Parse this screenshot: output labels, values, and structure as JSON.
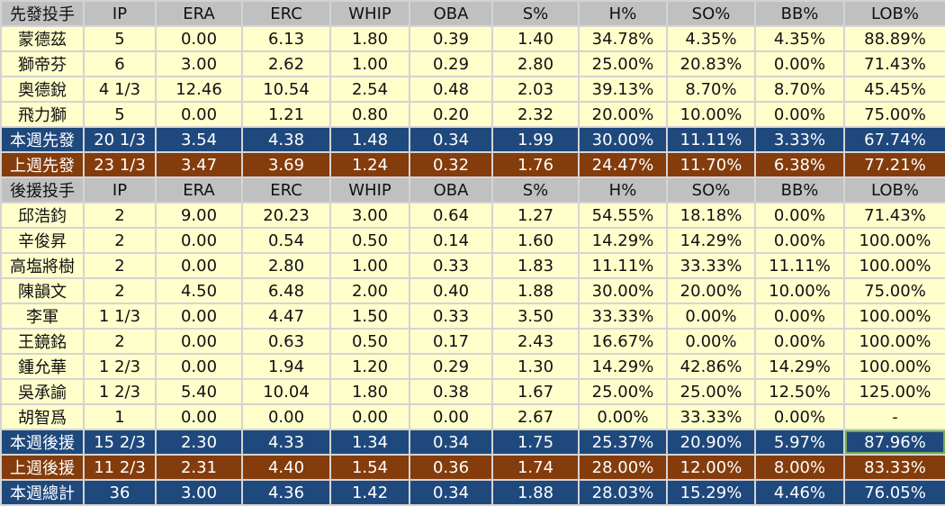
{
  "colors": {
    "header": "#c0c0c0",
    "row": "#ffffcc",
    "this_week": "#1f497d",
    "last_week": "#843c0c",
    "selection": "#70ad47"
  },
  "columns": [
    "IP",
    "ERA",
    "ERC",
    "WHIP",
    "OBA",
    "S%",
    "H%",
    "SO%",
    "BB%",
    "LOB%"
  ],
  "sections": [
    {
      "header": "先發投手",
      "rows": [
        [
          "蒙德茲",
          "5",
          "0.00",
          "6.13",
          "1.80",
          "0.39",
          "1.40",
          "34.78%",
          "4.35%",
          "4.35%",
          "88.89%"
        ],
        [
          "獅帝芬",
          "6",
          "3.00",
          "2.62",
          "1.00",
          "0.29",
          "2.80",
          "25.00%",
          "20.83%",
          "0.00%",
          "71.43%"
        ],
        [
          "奧德銳",
          "4 1/3",
          "12.46",
          "10.54",
          "2.54",
          "0.48",
          "2.03",
          "39.13%",
          "8.70%",
          "8.70%",
          "45.45%"
        ],
        [
          "飛力獅",
          "5",
          "0.00",
          "1.21",
          "0.80",
          "0.20",
          "2.32",
          "20.00%",
          "10.00%",
          "0.00%",
          "75.00%"
        ]
      ],
      "totals": [
        {
          "type": "blue",
          "cells": [
            "本週先發",
            "20 1/3",
            "3.54",
            "4.38",
            "1.48",
            "0.34",
            "1.99",
            "30.00%",
            "11.11%",
            "3.33%",
            "67.74%"
          ]
        },
        {
          "type": "brown",
          "cells": [
            "上週先發",
            "23 1/3",
            "3.47",
            "3.69",
            "1.24",
            "0.32",
            "1.76",
            "24.47%",
            "11.70%",
            "6.38%",
            "77.21%"
          ]
        }
      ]
    },
    {
      "header": "後援投手",
      "rows": [
        [
          "邱浩鈞",
          "2",
          "9.00",
          "20.23",
          "3.00",
          "0.64",
          "1.27",
          "54.55%",
          "18.18%",
          "0.00%",
          "71.43%"
        ],
        [
          "辛俊昇",
          "2",
          "0.00",
          "0.54",
          "0.50",
          "0.14",
          "1.60",
          "14.29%",
          "14.29%",
          "0.00%",
          "100.00%"
        ],
        [
          "高塩將樹",
          "2",
          "0.00",
          "2.80",
          "1.00",
          "0.33",
          "1.83",
          "11.11%",
          "33.33%",
          "11.11%",
          "100.00%"
        ],
        [
          "陳韻文",
          "2",
          "4.50",
          "6.48",
          "2.00",
          "0.40",
          "1.88",
          "30.00%",
          "20.00%",
          "10.00%",
          "75.00%"
        ],
        [
          "李軍",
          "1 1/3",
          "0.00",
          "4.47",
          "1.50",
          "0.33",
          "3.50",
          "33.33%",
          "0.00%",
          "0.00%",
          "100.00%"
        ],
        [
          "王鏡銘",
          "2",
          "0.00",
          "0.63",
          "0.50",
          "0.17",
          "2.43",
          "16.67%",
          "0.00%",
          "0.00%",
          "100.00%"
        ],
        [
          "鍾允華",
          "1 2/3",
          "0.00",
          "1.94",
          "1.20",
          "0.29",
          "1.30",
          "14.29%",
          "42.86%",
          "14.29%",
          "100.00%"
        ],
        [
          "吳承諭",
          "1 2/3",
          "5.40",
          "10.04",
          "1.80",
          "0.38",
          "1.67",
          "25.00%",
          "25.00%",
          "12.50%",
          "125.00%"
        ],
        [
          "胡智爲",
          "1",
          "0.00",
          "0.00",
          "0.00",
          "0.00",
          "2.67",
          "0.00%",
          "33.33%",
          "0.00%",
          "-"
        ]
      ],
      "totals": [
        {
          "type": "blue",
          "cells": [
            "本週後援",
            "15 2/3",
            "2.30",
            "4.33",
            "1.34",
            "0.34",
            "1.75",
            "25.37%",
            "20.90%",
            "5.97%",
            "87.96%"
          ]
        },
        {
          "type": "brown",
          "cells": [
            "上週後援",
            "11 2/3",
            "2.31",
            "4.40",
            "1.54",
            "0.36",
            "1.74",
            "28.00%",
            "12.00%",
            "8.00%",
            "83.33%"
          ]
        },
        {
          "type": "blue",
          "cells": [
            "本週總計",
            "36",
            "3.00",
            "4.36",
            "1.42",
            "0.34",
            "1.88",
            "28.03%",
            "15.29%",
            "4.46%",
            "76.05%"
          ]
        }
      ]
    }
  ]
}
